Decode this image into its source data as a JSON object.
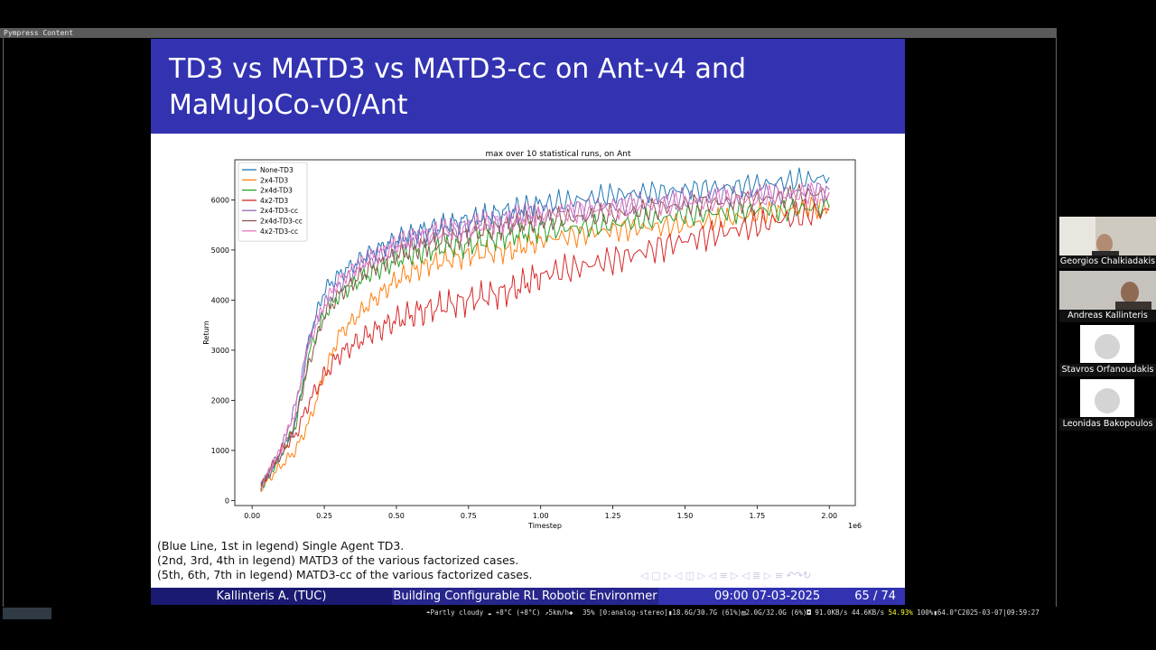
{
  "window": {
    "title": "Pympress Content"
  },
  "slide": {
    "title_lines": [
      "TD3 vs MATD3 vs MATD3-cc on Ant-v4 and",
      "MaMuJoCo-v0/Ant"
    ],
    "caption_lines": [
      "(Blue Line, 1st in legend) Single Agent TD3.",
      "(2nd, 3rd, 4th in legend) MATD3 of the various factorized cases.",
      "(5th, 6th, 7th in legend) MATD3-cc of the various factorized cases."
    ],
    "nav_symbols": "◁ ▢ ▷ ◁ ◫ ▷ ◁ ≡ ▷ ◁ ≣ ▷ ≡ ↶↷↻",
    "footer": {
      "author": "Kallinteris A.  (TUC)",
      "talk_title": "Building Configurable RL Robotic Environmer",
      "datetime": "09:00 07-03-2025",
      "page": "65 / 74"
    }
  },
  "chart_data": {
    "type": "line",
    "title": "max over 10 statistical runs, on Ant",
    "xlabel": "Timestep",
    "ylabel": "Return",
    "x_multiplier_label": "1e6",
    "xlim": [
      -0.06,
      2.09
    ],
    "ylim": [
      -100,
      6800
    ],
    "x_ticks": [
      0.0,
      0.25,
      0.5,
      0.75,
      1.0,
      1.25,
      1.5,
      1.75,
      2.0
    ],
    "x_tick_labels": [
      "0.00",
      "0.25",
      "0.50",
      "0.75",
      "1.00",
      "1.25",
      "1.50",
      "1.75",
      "2.00"
    ],
    "y_ticks": [
      0,
      1000,
      2000,
      3000,
      4000,
      5000,
      6000
    ],
    "y_tick_labels": [
      "0",
      "1000",
      "2000",
      "3000",
      "4000",
      "5000",
      "6000"
    ],
    "legend_position": "top-left",
    "x": [
      0.03,
      0.1,
      0.15,
      0.2,
      0.25,
      0.3,
      0.4,
      0.5,
      0.6,
      0.75,
      0.9,
      1.0,
      1.25,
      1.5,
      1.75,
      2.0
    ],
    "series": [
      {
        "name": "None-TD3",
        "color": "#1f77b4",
        "values": [
          250,
          900,
          1500,
          3300,
          4200,
          4500,
          4900,
          5200,
          5400,
          5600,
          5800,
          5900,
          6100,
          6200,
          6300,
          6450
        ]
      },
      {
        "name": "2x4-TD3",
        "color": "#ff7f0e",
        "values": [
          250,
          700,
          1000,
          1600,
          2500,
          3300,
          3900,
          4400,
          4700,
          4900,
          5000,
          5200,
          5400,
          5500,
          5700,
          5900
        ]
      },
      {
        "name": "2x4d-TD3",
        "color": "#2ca02c",
        "values": [
          250,
          900,
          1500,
          3000,
          3700,
          4100,
          4500,
          4800,
          5000,
          5100,
          5300,
          5400,
          5500,
          5700,
          5800,
          5850
        ]
      },
      {
        "name": "4x2-TD3",
        "color": "#d62728",
        "values": [
          300,
          1000,
          1300,
          2000,
          2500,
          2900,
          3300,
          3600,
          3800,
          4000,
          4200,
          4500,
          4800,
          5200,
          5500,
          5800
        ]
      },
      {
        "name": "2x4-TD3-cc",
        "color": "#9467bd",
        "values": [
          300,
          1000,
          1900,
          3300,
          3900,
          4300,
          4800,
          5100,
          5300,
          5500,
          5650,
          5750,
          5900,
          6000,
          6100,
          6200
        ]
      },
      {
        "name": "2x4d-TD3-cc",
        "color": "#8c564b",
        "values": [
          300,
          900,
          1600,
          2800,
          3700,
          4100,
          4600,
          4900,
          5100,
          5300,
          5500,
          5600,
          5700,
          5900,
          6000,
          6150
        ]
      },
      {
        "name": "4x2-TD3-cc",
        "color": "#e377c2",
        "values": [
          300,
          1000,
          1800,
          3200,
          3900,
          4400,
          4800,
          5100,
          5300,
          5450,
          5600,
          5700,
          5850,
          5950,
          6050,
          6150
        ]
      }
    ],
    "grid": false
  },
  "participants": [
    {
      "name": "Georgios Chalkiadakis",
      "video": true
    },
    {
      "name": "Andreas Kallinteris",
      "video": true
    },
    {
      "name": "Stavros Orfanoudakis",
      "video": false
    },
    {
      "name": "Leonidas Bakopoulos",
      "video": false
    }
  ],
  "statusbar": {
    "weather": "☂Partly cloudy ☁ +8°C (+8°C) ↗5km/h◆",
    "system": "35% [0:analog-stereo]▮18.6G/30.7G (61%)▤2.0G/32.0G (6%)◘ 91.0KB/s   44.6KB/s",
    "battery": "54.93%",
    "clock": "  100%▮64.0°C2025-03-07|09:59:27"
  }
}
